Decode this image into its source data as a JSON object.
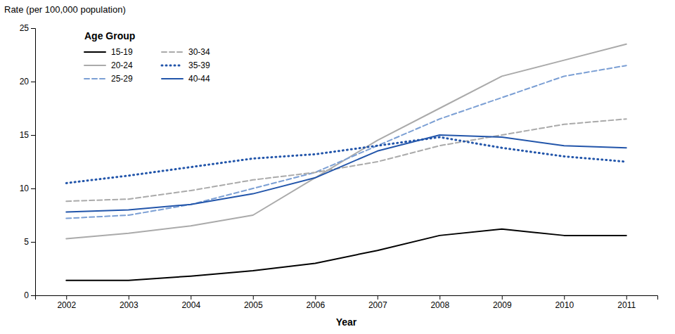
{
  "chart_data": {
    "type": "line",
    "xlabel": "Year",
    "ylabel": "Rate (per 100,000 population)",
    "legend_title": "Age Group",
    "x": [
      2002,
      2003,
      2004,
      2005,
      2006,
      2007,
      2008,
      2009,
      2010,
      2011
    ],
    "series": [
      {
        "name": "15-19",
        "color": "#000000",
        "line_style": "solid",
        "values": [
          1.4,
          1.4,
          1.8,
          2.3,
          3.0,
          4.2,
          5.6,
          6.2,
          5.6,
          5.6
        ]
      },
      {
        "name": "20-24",
        "color": "#aaaaaa",
        "line_style": "solid",
        "values": [
          5.3,
          5.8,
          6.5,
          7.5,
          11.0,
          14.5,
          17.5,
          20.5,
          22.0,
          23.5
        ]
      },
      {
        "name": "25-29",
        "color": "#7b9fd4",
        "line_style": "dashed",
        "values": [
          7.2,
          7.5,
          8.5,
          10.0,
          11.5,
          14.0,
          16.5,
          18.5,
          20.5,
          21.5
        ]
      },
      {
        "name": "30-34",
        "color": "#aaaaaa",
        "line_style": "dashed",
        "values": [
          8.8,
          9.0,
          9.8,
          10.8,
          11.5,
          12.5,
          14.0,
          15.0,
          16.0,
          16.5
        ]
      },
      {
        "name": "35-39",
        "color": "#2255aa",
        "line_style": "dotted",
        "values": [
          10.5,
          11.2,
          12.0,
          12.8,
          13.2,
          14.0,
          14.8,
          13.8,
          13.0,
          12.5
        ]
      },
      {
        "name": "40-44",
        "color": "#2255aa",
        "line_style": "solid",
        "values": [
          7.8,
          8.0,
          8.5,
          9.5,
          11.0,
          13.5,
          15.0,
          14.8,
          14.0,
          13.8
        ]
      }
    ],
    "xlim": [
      2001.5,
      2011.5
    ],
    "xticks": [
      2002,
      2003,
      2004,
      2005,
      2006,
      2007,
      2008,
      2009,
      2010,
      2011
    ],
    "ylim": [
      0,
      25
    ],
    "yticks": [
      0,
      5,
      10,
      15,
      20,
      25
    ],
    "grid": false,
    "legend": "top-left"
  }
}
